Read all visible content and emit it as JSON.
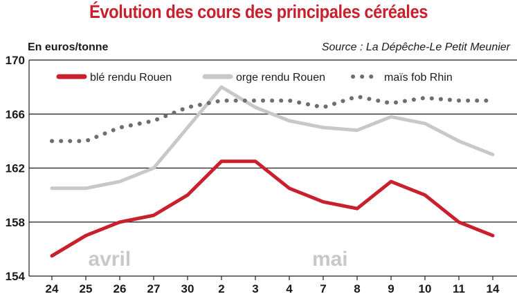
{
  "title": "Évolution des cours des principales céréales",
  "unit": "En euros/tonne",
  "source": "Source : La Dépêche-Le Petit Meunier",
  "colors": {
    "title": "#c8202c",
    "ble": "#c8202c",
    "orge": "#c8c8c8",
    "mais": "#6e6e6e",
    "grid": "#1a1a1a",
    "month": "#c8c8c8"
  },
  "month_labels": [
    "avril",
    "mai"
  ],
  "chart_data": {
    "type": "line",
    "categories": [
      "24",
      "25",
      "26",
      "27",
      "30",
      "2",
      "3",
      "4",
      "7",
      "8",
      "9",
      "10",
      "11",
      "14"
    ],
    "ylim": [
      154,
      170
    ],
    "yticks": [
      154,
      158,
      162,
      166,
      170
    ],
    "grid": true,
    "legend_position": "top",
    "series": [
      {
        "name": "blé rendu Rouen",
        "style": "solid",
        "values": [
          155.5,
          157,
          158,
          158.5,
          160,
          162.5,
          162.5,
          160.5,
          159.5,
          159,
          161,
          160,
          158,
          157
        ]
      },
      {
        "name": "orge rendu Rouen",
        "style": "solid",
        "values": [
          160.5,
          160.5,
          161,
          162,
          165,
          168,
          166.5,
          165.5,
          165,
          164.8,
          165.8,
          165.3,
          164,
          163
        ]
      },
      {
        "name": "maïs fob Rhin",
        "style": "dotted",
        "values": [
          164,
          164,
          165,
          165.5,
          166.5,
          167,
          167,
          167,
          166.5,
          167.3,
          166.8,
          167.2,
          167,
          167
        ]
      }
    ]
  }
}
